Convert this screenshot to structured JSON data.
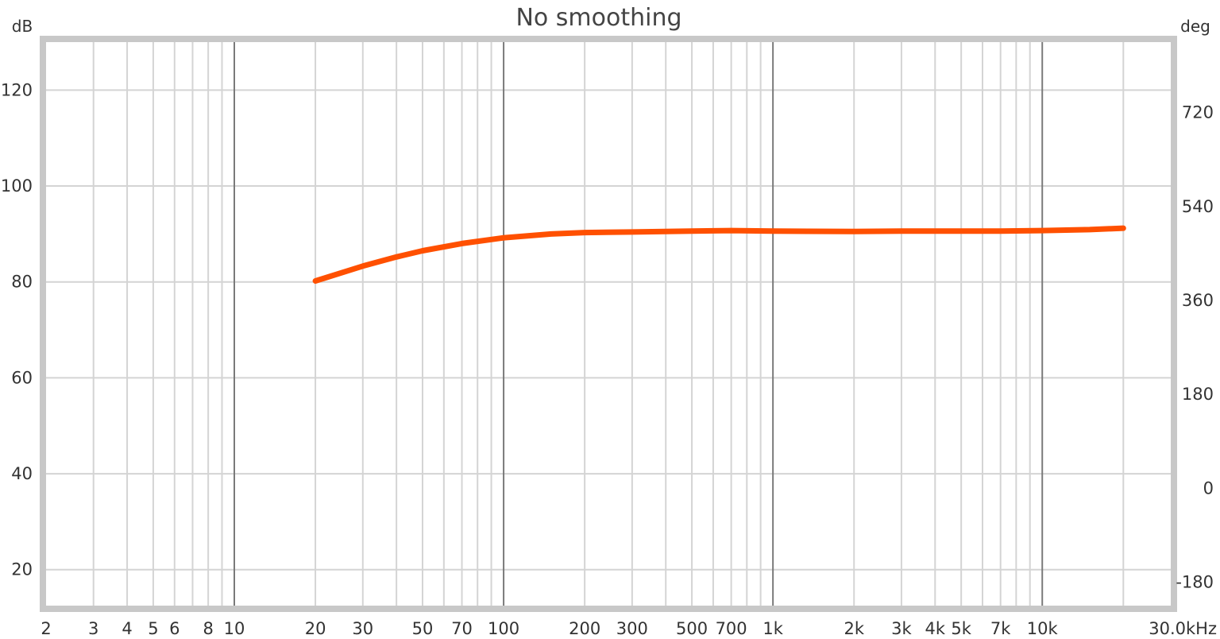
{
  "chart_data": {
    "type": "line",
    "title": "No smoothing",
    "y_left_unit": "dB",
    "y_right_unit": "deg",
    "x_scale": "log",
    "xlim": [
      2,
      30000
    ],
    "ylim_left": [
      12.5,
      130
    ],
    "ylim_right": [
      -225,
      855
    ],
    "grid": true,
    "y_left_ticks": [
      {
        "value": 120,
        "label": "120"
      },
      {
        "value": 100,
        "label": "100"
      },
      {
        "value": 80,
        "label": "80"
      },
      {
        "value": 60,
        "label": "60"
      },
      {
        "value": 40,
        "label": "40"
      },
      {
        "value": 20,
        "label": "20"
      }
    ],
    "y_right_ticks": [
      {
        "value": 720,
        "label": "720"
      },
      {
        "value": 540,
        "label": "540"
      },
      {
        "value": 360,
        "label": "360"
      },
      {
        "value": 180,
        "label": "180"
      },
      {
        "value": 0,
        "label": "0"
      },
      {
        "value": -180,
        "label": "-180"
      }
    ],
    "x_ticks": [
      {
        "value": 2,
        "label": "2"
      },
      {
        "value": 3,
        "label": "3"
      },
      {
        "value": 4,
        "label": "4"
      },
      {
        "value": 5,
        "label": "5"
      },
      {
        "value": 6,
        "label": "6"
      },
      {
        "value": 8,
        "label": "8"
      },
      {
        "value": 10,
        "label": "10"
      },
      {
        "value": 20,
        "label": "20"
      },
      {
        "value": 30,
        "label": "30"
      },
      {
        "value": 50,
        "label": "50"
      },
      {
        "value": 70,
        "label": "70"
      },
      {
        "value": 100,
        "label": "100"
      },
      {
        "value": 200,
        "label": "200"
      },
      {
        "value": 300,
        "label": "300"
      },
      {
        "value": 500,
        "label": "500"
      },
      {
        "value": 700,
        "label": "700"
      },
      {
        "value": 1000,
        "label": "1k"
      },
      {
        "value": 2000,
        "label": "2k"
      },
      {
        "value": 3000,
        "label": "3k"
      },
      {
        "value": 4000,
        "label": "4k"
      },
      {
        "value": 5000,
        "label": "5k"
      },
      {
        "value": 7000,
        "label": "7k"
      },
      {
        "value": 10000,
        "label": "10k"
      },
      {
        "value": 30000,
        "label": "30.0kHz"
      }
    ],
    "x_major_grid": [
      10,
      100,
      1000,
      10000
    ],
    "series": [
      {
        "color": "#ff5000",
        "x": [
          20,
          30,
          40,
          50,
          70,
          100,
          150,
          200,
          300,
          500,
          700,
          1000,
          2000,
          3000,
          5000,
          7000,
          10000,
          15000,
          20000
        ],
        "y": [
          80.2,
          83.3,
          85.2,
          86.5,
          88.0,
          89.2,
          90.0,
          90.3,
          90.4,
          90.6,
          90.7,
          90.6,
          90.5,
          90.6,
          90.6,
          90.6,
          90.7,
          90.9,
          91.2
        ]
      }
    ]
  }
}
